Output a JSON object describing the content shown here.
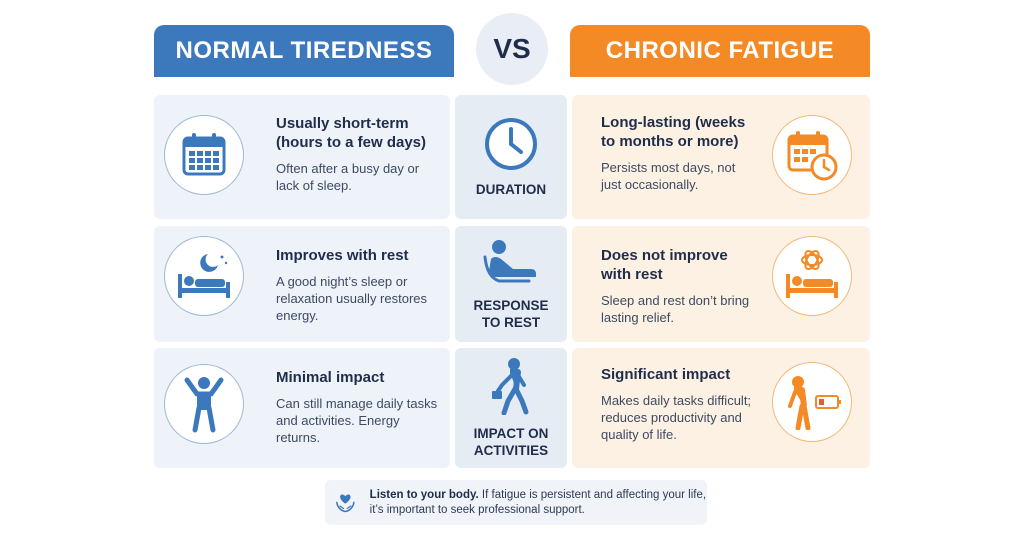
{
  "header": {
    "left_title": "NORMAL TIREDNESS",
    "vs": "VS",
    "right_title": "CHRONIC FATIGUE"
  },
  "rows": [
    {
      "category": "DURATION",
      "category_icon": "clock-icon",
      "normal": {
        "icon": "calendar-icon",
        "title": "Usually short-term (hours to a few days)",
        "desc": "Often after a busy day or lack of sleep."
      },
      "chronic": {
        "icon": "calendar-clock-icon",
        "title": "Long-lasting (weeks to months or more)",
        "desc": "Persists most days, not just occasionally."
      }
    },
    {
      "category": "RESPONSE TO REST",
      "category_icon": "reclining-person-icon",
      "normal": {
        "icon": "sleeping-moon-icon",
        "title": "Improves with rest",
        "desc": "A good night’s sleep or relaxation usually restores energy."
      },
      "chronic": {
        "icon": "restless-sleep-icon",
        "title": "Does not improve with rest",
        "desc": "Sleep and rest don’t bring lasting relief."
      }
    },
    {
      "category": "IMPACT ON ACTIVITIES",
      "category_icon": "walking-person-icon",
      "normal": {
        "icon": "energetic-person-icon",
        "title": "Minimal impact",
        "desc": "Can still manage daily tasks and activities. Energy returns."
      },
      "chronic": {
        "icon": "tired-person-low-battery-icon",
        "title": "Significant impact",
        "desc": "Makes daily tasks difficult; reduces productivity and quality of life."
      }
    }
  ],
  "footer": {
    "icon": "heart-hands-icon",
    "bold": "Listen to your body.",
    "text": " If fatigue is persistent and affecting your life, it’s important to seek professional support."
  },
  "colors": {
    "blue": "#3c78bc",
    "orange": "#f48a26",
    "navy": "#1f2d4a"
  }
}
